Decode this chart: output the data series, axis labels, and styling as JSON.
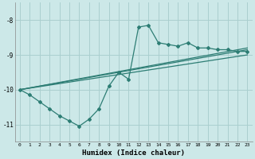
{
  "background_color": "#cce8e8",
  "line_color": "#2d7d74",
  "grid_color": "#aacfcf",
  "xlabel": "Humidex (Indice chaleur)",
  "xlim": [
    -0.5,
    23.5
  ],
  "ylim": [
    -11.5,
    -7.5
  ],
  "yticks": [
    -11,
    -10,
    -9,
    -8
  ],
  "xticks": [
    0,
    1,
    2,
    3,
    4,
    5,
    6,
    7,
    8,
    9,
    10,
    11,
    12,
    13,
    14,
    15,
    16,
    17,
    18,
    19,
    20,
    21,
    22,
    23
  ],
  "curve_x": [
    0,
    1,
    2,
    3,
    4,
    5,
    6,
    7,
    8,
    9,
    10,
    11,
    12,
    13,
    14,
    15,
    16,
    17,
    18,
    19,
    20,
    21,
    22,
    23
  ],
  "curve_y": [
    -10.0,
    -10.15,
    -10.35,
    -10.55,
    -10.75,
    -10.9,
    -11.05,
    -10.85,
    -10.55,
    -9.9,
    -9.5,
    -9.7,
    -8.2,
    -8.15,
    -8.65,
    -8.7,
    -8.75,
    -8.65,
    -8.8,
    -8.8,
    -8.85,
    -8.85,
    -8.9,
    -8.9
  ],
  "line1_x": [
    0,
    23
  ],
  "line1_y": [
    -10.0,
    -8.8
  ],
  "line2_x": [
    0,
    23
  ],
  "line2_y": [
    -10.0,
    -8.85
  ],
  "line3_x": [
    0,
    23
  ],
  "line3_y": [
    -10.0,
    -9.0
  ]
}
